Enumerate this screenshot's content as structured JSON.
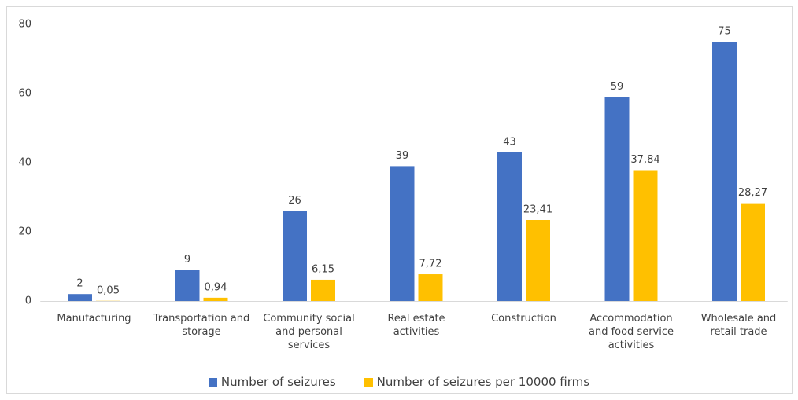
{
  "chart_data": {
    "type": "bar",
    "categories": [
      "Manufacturing",
      "Transportation and storage",
      "Community social and personal services",
      "Real estate activities",
      "Construction",
      "Accommodation and food service activities",
      "Wholesale and retail trade"
    ],
    "series": [
      {
        "name": "Number of seizures",
        "color": "#4472c4",
        "values": [
          2,
          9,
          26,
          39,
          43,
          59,
          75
        ]
      },
      {
        "name": "Number of seizures per 10000 firms",
        "color": "#ffc000",
        "values": [
          0.05,
          0.94,
          6.15,
          7.72,
          23.41,
          37.84,
          28.27
        ],
        "value_labels": [
          "0,05",
          "0,94",
          "6,15",
          "7,72",
          "23,41",
          "37,84",
          "28,27"
        ]
      }
    ],
    "ylim": [
      0,
      80
    ],
    "yticks": [
      0,
      20,
      40,
      60,
      80
    ],
    "grid": false,
    "legend": "bottom"
  }
}
